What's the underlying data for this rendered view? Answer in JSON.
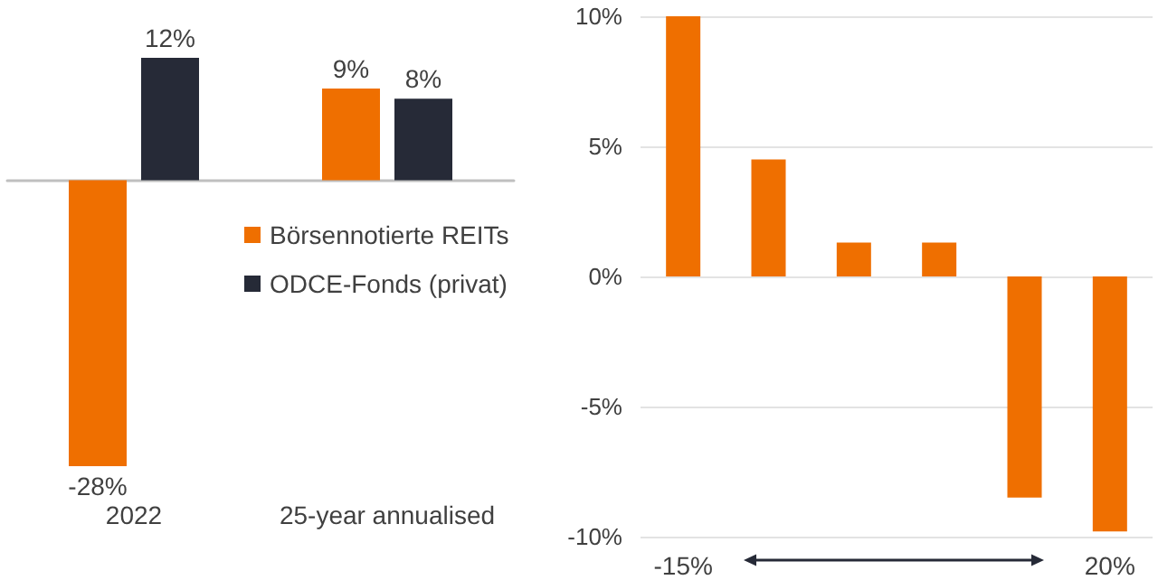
{
  "chart_data": [
    {
      "type": "bar",
      "categories": [
        "2022",
        "25-year annualised"
      ],
      "series": [
        {
          "name": "Börsennotierte REITs",
          "color": "#ef6f00",
          "values": [
            -28,
            9
          ],
          "value_labels": [
            "-28%",
            "9%"
          ]
        },
        {
          "name": "ODCE-Fonds (privat)",
          "color": "#262a37",
          "values": [
            12,
            8
          ],
          "value_labels": [
            "12%",
            "8%"
          ]
        }
      ],
      "legend": "right"
    },
    {
      "type": "bar",
      "categories": [
        "-15%",
        null,
        null,
        null,
        null,
        "20%"
      ],
      "values": [
        10,
        4.5,
        1.3,
        1.3,
        -8.5,
        -9.8
      ],
      "color": "#ef6f00",
      "ylim": [
        -10,
        10
      ],
      "yticks": [
        {
          "value": -10,
          "label": "-10%"
        },
        {
          "value": -5,
          "label": "-5%"
        },
        {
          "value": 0,
          "label": "0%"
        },
        {
          "value": 5,
          "label": "5%"
        },
        {
          "value": 10,
          "label": "10%"
        }
      ],
      "grid": "y"
    }
  ]
}
